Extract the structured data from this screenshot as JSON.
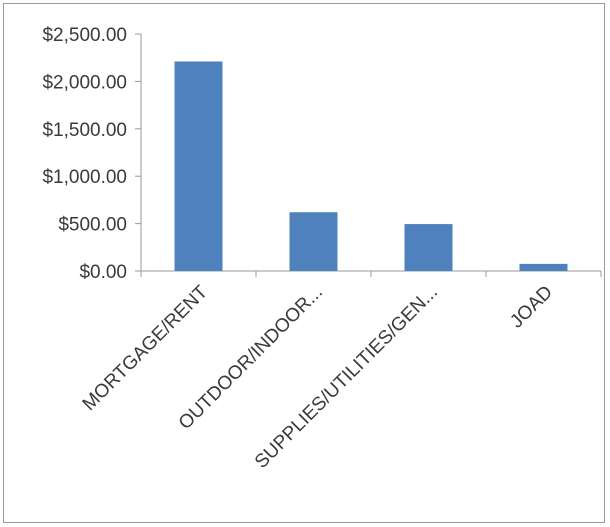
{
  "chart_data": {
    "type": "bar",
    "categories": [
      "MORTGAGE/RENT",
      "OUTDOOR/INDOOR...",
      "SUPPLIES/UTILITIES/GEN...",
      "JOAD"
    ],
    "values": [
      2210,
      620,
      495,
      75
    ],
    "ylim": [
      0,
      2500
    ],
    "y_ticks": [
      0,
      500,
      1000,
      1500,
      2000,
      2500
    ],
    "y_tick_labels": [
      "$0.00",
      "$500.00",
      "$1,000.00",
      "$1,500.00",
      "$2,000.00",
      "$2,500.00"
    ],
    "grid": false,
    "legend": "none",
    "bar_color": "#4f81bd"
  }
}
